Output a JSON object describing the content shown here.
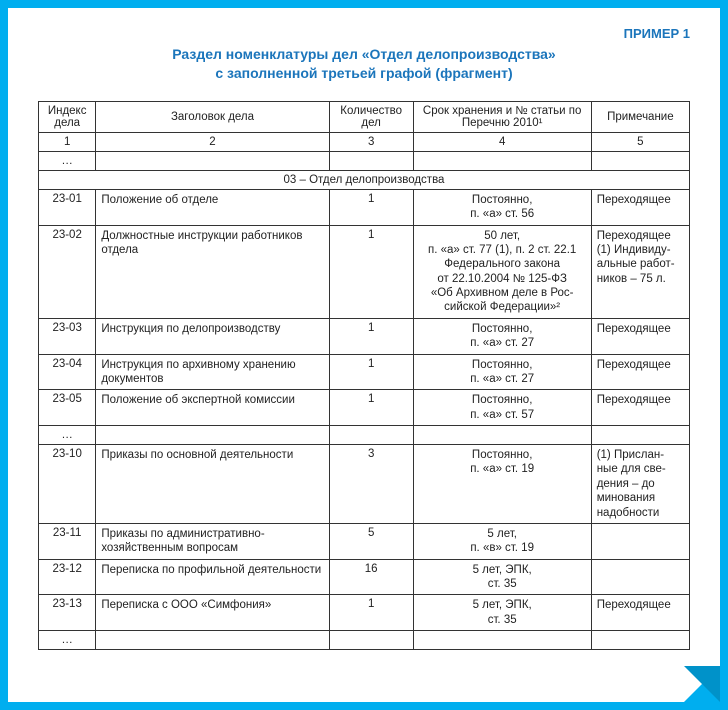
{
  "frame": {
    "border_color": "#00aeef",
    "fold_shadow": "#0092c9",
    "page_bg": "#ffffff"
  },
  "example_label": "ПРИМЕР 1",
  "title_line1": "Раздел номенклатуры дел «Отдел делопроизводства»",
  "title_line2": "с заполненной третьей графой (фрагмент)",
  "table": {
    "headers": {
      "idx": "Индекс дела",
      "title": "Заголовок дела",
      "qty": "Количество дел",
      "term": "Срок хранения и № статьи по Перечню 2010¹",
      "note": "Примечание"
    },
    "num_row": {
      "c1": "1",
      "c2": "2",
      "c3": "3",
      "c4": "4",
      "c5": "5"
    },
    "ellipsis": "…",
    "section_header": "03 – Отдел делопроизводства",
    "rows": [
      {
        "idx": "23-01",
        "title": "Положение об отделе",
        "qty": "1",
        "term": "Постоянно,\nп. «а» ст. 56",
        "note": "Переходящее"
      },
      {
        "idx": "23-02",
        "title": "Должностные инструкции работников отдела",
        "qty": "1",
        "term": "50 лет,\nп. «а» ст. 77 (1), п. 2 ст. 22.1\nФедерального закона\nот 22.10.2004 № 125-ФЗ\n«Об Архивном деле в Рос-\nсийской Федерации»²",
        "note": "Переходящее\n(1) Индивиду-\nальные работ-\nников – 75 л."
      },
      {
        "idx": "23-03",
        "title": "Инструкция по делопроизводству",
        "qty": "1",
        "term": "Постоянно,\nп. «а» ст. 27",
        "note": "Переходящее"
      },
      {
        "idx": "23-04",
        "title": "Инструкция по архивному хранению документов",
        "qty": "1",
        "term": "Постоянно,\nп. «а» ст. 27",
        "note": "Переходящее"
      },
      {
        "idx": "23-05",
        "title": "Положение об экспертной комиссии",
        "qty": "1",
        "term": "Постоянно,\nп. «а» ст. 57",
        "note": "Переходящее"
      },
      {
        "idx": "…",
        "title": "",
        "qty": "",
        "term": "",
        "note": ""
      },
      {
        "idx": "23-10",
        "title": "Приказы по основной деятельности",
        "qty": "3",
        "term": "Постоянно,\nп. «а» ст. 19",
        "note": "(1) Прислан-\nные для све-\nдения – до\nминования\nнадобности"
      },
      {
        "idx": "23-11",
        "title": "Приказы по административно-хозяйственным вопросам",
        "qty": "5",
        "term": "5 лет,\nп. «в» ст. 19",
        "note": ""
      },
      {
        "idx": "23-12",
        "title": "Переписка по профильной деятельности",
        "qty": "16",
        "term": "5 лет, ЭПК,\nст. 35",
        "note": ""
      },
      {
        "idx": "23-13",
        "title": "Переписка с ООО «Симфония»",
        "qty": "1",
        "term": "5 лет, ЭПК,\nст. 35",
        "note": "Переходящее"
      },
      {
        "idx": "…",
        "title": "",
        "qty": "",
        "term": "",
        "note": ""
      }
    ]
  }
}
